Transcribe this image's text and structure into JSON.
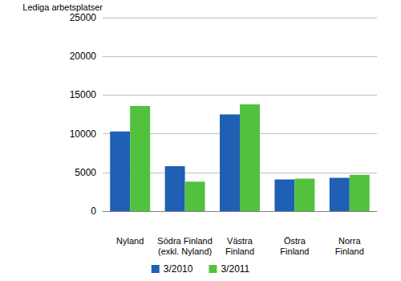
{
  "chart_data": {
    "type": "bar",
    "ylabel": "Lediga arbetsplatser",
    "categories": [
      "Nyland",
      "Södra Finland\n(exkl. Nyland)",
      "Västra\nFinland",
      "Östra\nFinland",
      "Norra\nFinland"
    ],
    "series": [
      {
        "name": "3/2010",
        "color": "#1f5fb4",
        "values": [
          10300,
          5800,
          12500,
          4100,
          4300
        ]
      },
      {
        "name": "3/2011",
        "color": "#52c13e",
        "values": [
          13600,
          3800,
          13800,
          4200,
          4700
        ]
      }
    ],
    "ylim": [
      0,
      25000
    ],
    "yticks": [
      0,
      5000,
      10000,
      15000,
      20000,
      25000
    ],
    "grid": true,
    "legend": "bottom"
  }
}
